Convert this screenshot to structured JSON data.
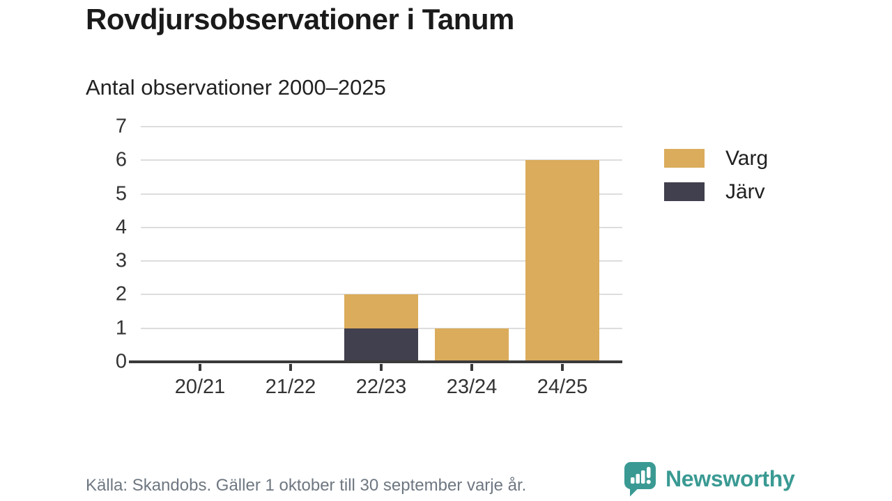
{
  "header": {
    "title": "Rovdjursobservationer i Tanum",
    "subtitle": "Antal observationer 2000–2025"
  },
  "chart_data": {
    "type": "bar",
    "stacked": true,
    "title": "Rovdjursobservationer i Tanum",
    "subtitle": "Antal observationer 2000–2025",
    "categories": [
      "20/21",
      "21/22",
      "22/23",
      "23/24",
      "24/25"
    ],
    "series": [
      {
        "name": "Varg",
        "color": "#DBAC5B",
        "values": [
          0,
          0,
          1,
          1,
          6
        ]
      },
      {
        "name": "Järv",
        "color": "#41404E",
        "values": [
          0,
          0,
          1,
          0,
          0
        ]
      }
    ],
    "stack_bottom_to_top": [
      "Järv",
      "Varg"
    ],
    "xlabel": "",
    "ylabel": "",
    "ylim": [
      0,
      7
    ],
    "yticks": [
      0,
      1,
      2,
      3,
      4,
      5,
      6,
      7
    ],
    "grid": "horizontal-only",
    "legend_position": "right"
  },
  "legend": {
    "items": [
      {
        "label": "Varg",
        "color": "#DBAC5B"
      },
      {
        "label": "Järv",
        "color": "#41404E"
      }
    ]
  },
  "footer": {
    "source": "Källa: Skandobs. Gäller 1 oktober till 30 september varje år.",
    "brand": "Newsworthy"
  },
  "colors": {
    "varg": "#DBAC5B",
    "jarv": "#41404E",
    "brand_teal": "#3A9A93",
    "grid": "#DDDDDD",
    "axis": "#3A3A3A",
    "tick_text": "#333333",
    "source_text": "#6E7781"
  }
}
